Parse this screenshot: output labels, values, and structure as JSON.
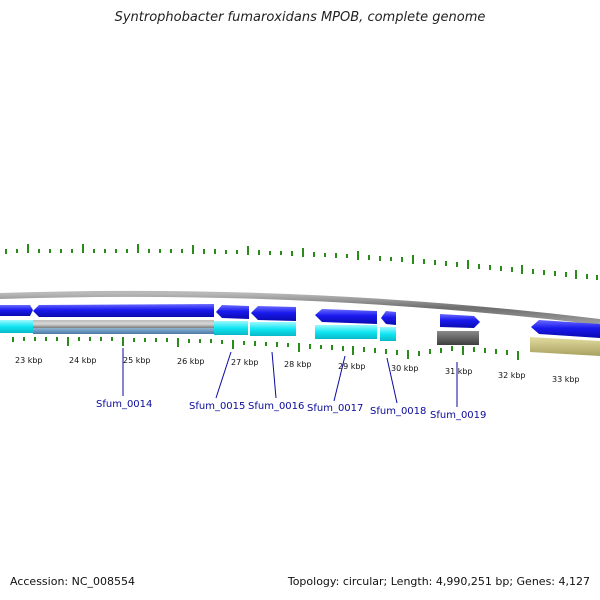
{
  "title": "Syntrophobacter fumaroxidans MPOB, complete genome",
  "footer": {
    "accession": "Accession: NC_008554",
    "summary": "Topology: circular; Length: 4,990,251 bp; Genes: 4,127"
  },
  "kbp_labels": [
    "23 kbp",
    "24 kbp",
    "25 kbp",
    "26 kbp",
    "27 kbp",
    "28 kbp",
    "29 kbp",
    "30 kbp",
    "31 kbp",
    "32 kbp",
    "33 kbp"
  ],
  "gene_labels": [
    "Sfum_0014",
    "Sfum_0015",
    "Sfum_0016",
    "Sfum_0017",
    "Sfum_0018",
    "Sfum_0019"
  ],
  "colors": {
    "cds": "#1414e6",
    "rna": "#00e8f0",
    "backbone": "#808080",
    "tick": "#2a8a1a",
    "gene_label": "#0a0a9a",
    "pseudo_gray": "#555555",
    "olive": "#c8c07a"
  }
}
